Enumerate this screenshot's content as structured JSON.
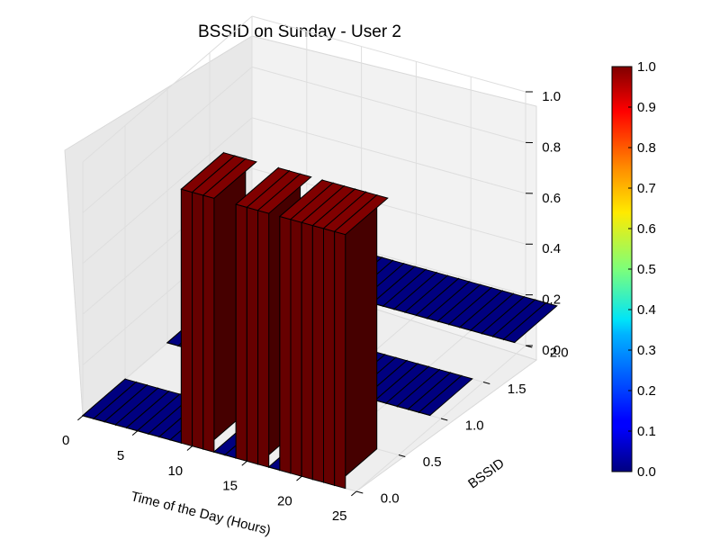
{
  "chart_data": {
    "type": "bar3d",
    "title": "BSSID on Sunday - User 2",
    "xlabel": "Time of the Day (Hours)",
    "ylabel": "BSSID",
    "zlabel": "",
    "xlim": [
      0,
      25
    ],
    "ylim": [
      0,
      2
    ],
    "zlim": [
      0,
      1
    ],
    "x_ticks": [
      "0",
      "5",
      "10",
      "15",
      "20",
      "25"
    ],
    "y_ticks": [
      "0.0",
      "0.5",
      "1.0",
      "1.5",
      "2.0"
    ],
    "z_ticks": [
      "0.0",
      "0.2",
      "0.4",
      "0.6",
      "0.8",
      "1.0"
    ],
    "colorbar": {
      "range": [
        0,
        1
      ],
      "ticks": [
        "0.0",
        "0.1",
        "0.2",
        "0.3",
        "0.4",
        "0.5",
        "0.6",
        "0.7",
        "0.8",
        "0.9",
        "1.0"
      ],
      "colormap": "jet"
    },
    "grid": true,
    "series": [
      {
        "bssid": 0,
        "hours": [
          0,
          1,
          2,
          3,
          4,
          5,
          6,
          7,
          8,
          9,
          10,
          11,
          12,
          13,
          14,
          15,
          16,
          17,
          18,
          19,
          20,
          21,
          22,
          23
        ],
        "values": [
          0,
          0,
          0,
          0,
          0,
          0,
          0,
          0,
          0,
          1,
          1,
          1,
          0,
          0,
          1,
          1,
          1,
          0,
          1,
          1,
          1,
          1,
          1,
          1
        ]
      },
      {
        "bssid": 1,
        "hours": [
          0,
          1,
          2,
          3,
          4,
          5,
          6,
          7,
          8,
          9,
          10,
          11,
          12,
          13,
          14,
          15,
          16,
          17,
          18,
          19,
          20,
          21,
          22,
          23
        ],
        "values": [
          0,
          0,
          0,
          0,
          0,
          0,
          0,
          0,
          0,
          0,
          0,
          0,
          0,
          0.1,
          0,
          0,
          0,
          0,
          0,
          0,
          0,
          0,
          0,
          0
        ]
      },
      {
        "bssid": 2,
        "hours": [
          0,
          1,
          2,
          3,
          4,
          5,
          6,
          7,
          8,
          9,
          10,
          11,
          12,
          13,
          14,
          15,
          16,
          17,
          18,
          19,
          20,
          21,
          22,
          23
        ],
        "values": [
          0,
          0,
          0,
          0,
          0,
          0,
          0,
          0,
          0,
          0,
          0,
          0,
          0,
          0,
          0,
          0,
          0,
          0,
          0,
          0,
          0,
          0,
          0,
          0
        ]
      }
    ]
  }
}
